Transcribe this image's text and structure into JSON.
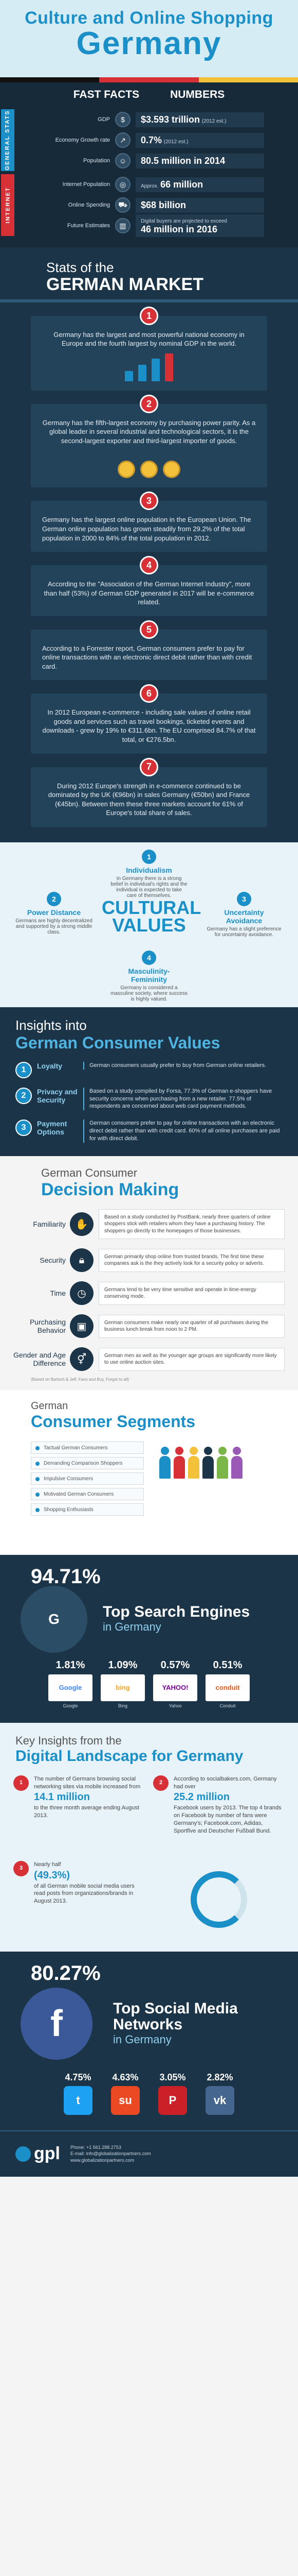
{
  "header": {
    "title_line1": "Culture and Online Shopping",
    "title_line2": "Germany"
  },
  "colors": {
    "accent": "#1b8fc7",
    "dark": "#1c3447",
    "red": "#d73036",
    "flag": [
      "#111111",
      "#d73036",
      "#f3c13a"
    ]
  },
  "facts": {
    "heads": [
      "FAST FACTS",
      "NUMBERS"
    ],
    "general_label": "GENERAL STATS",
    "internet_label": "INTERNET",
    "general": [
      {
        "label": "GDP",
        "icon": "money-icon",
        "value_big": "$3.593 trillion",
        "value_small": "(2012 est.)"
      },
      {
        "label": "Economy Growth rate",
        "icon": "growth-icon",
        "value_big": "0.7%",
        "value_small": "(2012 est.)"
      },
      {
        "label": "Population",
        "icon": "people-icon",
        "value_big": "80.5 million in 2014",
        "value_small": ""
      }
    ],
    "internet": [
      {
        "label": "Internet Population",
        "icon": "globe-icon",
        "value_big": "66 million",
        "value_small": "Approx."
      },
      {
        "label": "Online Spending",
        "icon": "cart-icon",
        "value_big": "$68 billion",
        "value_small": ""
      },
      {
        "label": "Future Estimates",
        "icon": "chart-icon",
        "value_big": "46 million in 2016",
        "value_small": "Digital buyers are projected to exceed"
      }
    ]
  },
  "market": {
    "title_small": "Stats of the",
    "title_big": "GERMAN MARKET",
    "stats": [
      {
        "n": "1",
        "text": "Germany has the largest and most powerful national economy in Europe and the fourth largest by nominal GDP in the world."
      },
      {
        "n": "2",
        "text": "Germany has the fifth-largest economy by purchasing power parity. As a global leader in several industrial and technological sectors, it is the second-largest exporter and third-largest importer of goods."
      },
      {
        "n": "3",
        "text": "Germany has the largest online population in the European Union. The German online population has grown steadily from 29.2% of the total population in 2000 to 84% of the total population in 2012."
      },
      {
        "n": "4",
        "text": "According to the \"Association of the German Internet Industry\", more than half (53%) of German GDP generated in 2017 will be e-commerce related."
      },
      {
        "n": "5",
        "text": "According to a Forrester report, German consumers prefer to pay for online transactions with an electronic direct debit rather than with credit card."
      },
      {
        "n": "6",
        "text": "In 2012 European e-commerce - including sale values of online retail goods and services such as travel bookings, ticketed events and downloads - grew by 19% to €311.6bn. The EU comprised 84.7% of that total, or €276.5bn."
      },
      {
        "n": "7",
        "text": "During 2012 Europe's strength in e-commerce continued to be dominated by the UK (€96bn) in sales Germany (€50bn) and France (€45bn). Between them these three markets account for 61% of Europe's total share of sales."
      }
    ]
  },
  "cultural": {
    "center": "CULTURAL VALUES",
    "items": [
      {
        "n": "1",
        "title": "Individualism",
        "text": "In Germany there is a strong belief in individual's rights and the individual is expected to take care of themselves."
      },
      {
        "n": "2",
        "title": "Power Distance",
        "text": "Germans are highly decentralized and supported by a strong middle class."
      },
      {
        "n": "3",
        "title": "Uncertainty Avoidance",
        "text": "Germany has a slight preference for uncertainty avoidance."
      },
      {
        "n": "4",
        "title": "Masculinity-Femininity",
        "text": "Germany is considered a masculine society, where success is highly valued."
      }
    ]
  },
  "insights": {
    "title_small": "Insights into",
    "title_big": "German Consumer Values",
    "rows": [
      {
        "n": "1",
        "label": "Loyalty",
        "text": "German consumers usually prefer to buy from German online retailers."
      },
      {
        "n": "2",
        "label": "Privacy and Security",
        "text": "Based on a study compiled by Forsa, 77.3% of German e-shoppers have security concerns when purchasing from a new retailer. 77.5% of respondents are concerned about web card payment methods."
      },
      {
        "n": "3",
        "label": "Payment Options",
        "text": "German consumers prefer to pay for online transactions with an electronic direct debit rather than with credit card. 60% of all online purchases are paid for with direct debit."
      }
    ]
  },
  "decision": {
    "title_small": "German Consumer",
    "title_big": "Decision Making",
    "rows": [
      {
        "label": "Familiarity",
        "icon": "handshake-icon",
        "text": "Based on a study conducted by PostBank, nearly three quarters of online shoppers stick with retailers whom they have a purchasing history. The shoppers go directly to the homepages of those businesses."
      },
      {
        "label": "Security",
        "icon": "lock-icon",
        "text": "German primarily shop online from trusted brands. The first time these companies ask is the they actively look for a security policy or adverts."
      },
      {
        "label": "Time",
        "icon": "clock-icon",
        "text": "Germans tend to be very time sensitive and operate in time-energy conserving mode."
      },
      {
        "label": "Purchasing Behavior",
        "icon": "bag-icon",
        "text": "German consumers make nearly one quarter of all purchases during the business lunch break from noon to 2 PM."
      },
      {
        "label": "Gender and Age Difference",
        "icon": "gender-icon",
        "text": "German men as well as the younger age groups are significantly more likely to use online auction sites."
      }
    ],
    "source": "(Based on Bartsch & Jeff, Fans and Buy, Forget to all)"
  },
  "segments": {
    "title_small": "German",
    "title_big": "Consumer Segments",
    "items": [
      "Tactual German Consumers",
      "Demanding Comparison Shoppers",
      "Impulsive Consumers",
      "Motivated German Consumers",
      "Shopping Enthusiasts"
    ]
  },
  "search": {
    "google_pct": "94.71%",
    "title_big": "Top Search Engines",
    "title_small": "in Germany",
    "others": [
      {
        "pct": "1.81%",
        "name": "Google",
        "logo": "Google",
        "color": "#4285f4"
      },
      {
        "pct": "1.09%",
        "name": "Bing",
        "logo": "bing",
        "color": "#f5a623"
      },
      {
        "pct": "0.57%",
        "name": "Yahoo",
        "logo": "YAHOO!",
        "color": "#7b0099"
      },
      {
        "pct": "0.51%",
        "name": "Conduit",
        "logo": "conduit",
        "color": "#e25a1c"
      }
    ]
  },
  "digital": {
    "title_small": "Key Insights from the",
    "title_big": "Digital Landscape for Germany",
    "items": [
      {
        "n": "1",
        "text_a": "The number of Germans browsing social networking sites via mobile increased from",
        "big": "14.1 million",
        "text_b": "to the three month average ending August 2013."
      },
      {
        "n": "2",
        "text_a": "According to socialbakers.com, Germany had over",
        "big": "25.2 million",
        "text_b": "Facebook users by 2013. The top 4 brands on Facebook by number of fans were Germany's; Facebook.com, Adidas, Sportfive and Deutscher Fußball Bund."
      },
      {
        "n": "3",
        "text_a": "Nearly half",
        "big": "(49.3%)",
        "text_b": "of all German mobile social media users read posts from organizations/brands in August 2013."
      }
    ]
  },
  "social": {
    "fb_pct": "80.27%",
    "title_big": "Top Social Media Networks",
    "title_small": "in Germany",
    "others": [
      {
        "pct": "4.75%",
        "name": "twitter",
        "glyph": "t",
        "color": "#1da1f2"
      },
      {
        "pct": "4.63%",
        "name": "stumbleupon",
        "glyph": "su",
        "color": "#eb4924"
      },
      {
        "pct": "3.05%",
        "name": "pinterest",
        "glyph": "P",
        "color": "#cb2027"
      },
      {
        "pct": "2.82%",
        "name": "vkontakte",
        "glyph": "vk",
        "color": "#45668e"
      }
    ]
  },
  "footer": {
    "logo": "gpl",
    "contact_lines": [
      "Phone: +1 561.288.2753",
      "E-mail: info@globalizationpartners.com",
      "www.globalizationpartners.com"
    ]
  }
}
